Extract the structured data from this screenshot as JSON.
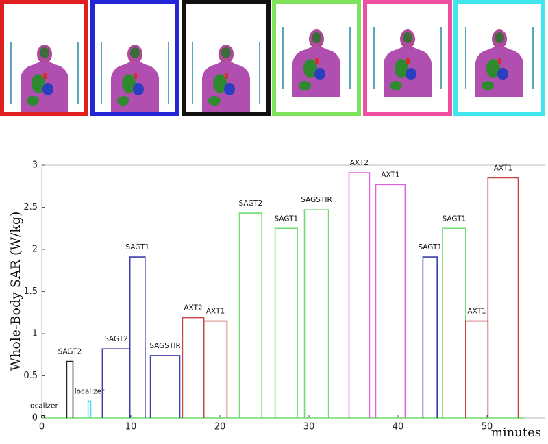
{
  "chart_data": {
    "type": "pulse",
    "y_label": "Whole-Body SAR (W/kg)",
    "x_label": "minutes",
    "xlim": [
      0,
      56.5
    ],
    "xticks": [
      0,
      10,
      20,
      30,
      40,
      50
    ],
    "ylim": [
      0,
      3
    ],
    "yticks": [
      0,
      0.5,
      1,
      1.5,
      2,
      2.5,
      3
    ],
    "segments": [
      {
        "label": "localizer",
        "color": "#222222",
        "x": [
          0,
          0.3
        ],
        "value": 0.03
      },
      {
        "label": "SAGT2",
        "color": "#222222",
        "x": [
          2.8,
          3.5
        ],
        "value": 0.67
      },
      {
        "label": "localizer",
        "color": "#4dd9e8",
        "x": [
          5.2,
          5.5
        ],
        "value": 0.2
      },
      {
        "label": "SAGT2",
        "color": "#3d3dab",
        "x": [
          6.8,
          9.9
        ],
        "value": 0.82
      },
      {
        "label": "SAGT1",
        "color": "#3d3dab",
        "x": [
          9.9,
          11.6
        ],
        "value": 1.91
      },
      {
        "label": "SAGSTIR",
        "color": "#3d3dab",
        "x": [
          12.2,
          15.5
        ],
        "value": 0.74
      },
      {
        "label": "AXT2",
        "color": "#c84444",
        "x": [
          15.8,
          18.2
        ],
        "value": 1.19
      },
      {
        "label": "AXT1",
        "color": "#c84444",
        "x": [
          18.2,
          20.8
        ],
        "value": 1.15
      },
      {
        "label": "SAGT2",
        "color": "#6fdc6f",
        "x": [
          22.2,
          24.7
        ],
        "value": 2.43
      },
      {
        "label": "SAGT1",
        "color": "#6fdc6f",
        "x": [
          26.2,
          28.7
        ],
        "value": 2.25
      },
      {
        "label": "SAGSTIR",
        "color": "#6fdc6f",
        "x": [
          29.5,
          32.2
        ],
        "value": 2.47
      },
      {
        "label": "AXT2",
        "color": "#e060e0",
        "x": [
          34.5,
          36.8
        ],
        "value": 2.91
      },
      {
        "label": "AXT1",
        "color": "#e060e0",
        "x": [
          37.5,
          40.8
        ],
        "value": 2.77
      },
      {
        "label": "SAGT1",
        "color": "#3d3dab",
        "x": [
          42.8,
          44.4
        ],
        "value": 1.91
      },
      {
        "label": "SAGT1",
        "color": "#6fdc6f",
        "x": [
          45.0,
          47.6
        ],
        "value": 2.25
      },
      {
        "label": "AXT1",
        "color": "#c84444",
        "x": [
          47.6,
          50.1
        ],
        "value": 1.15
      },
      {
        "label": "AXT1",
        "color": "#c84444",
        "x": [
          50.1,
          53.5
        ],
        "value": 2.85
      }
    ]
  }
}
